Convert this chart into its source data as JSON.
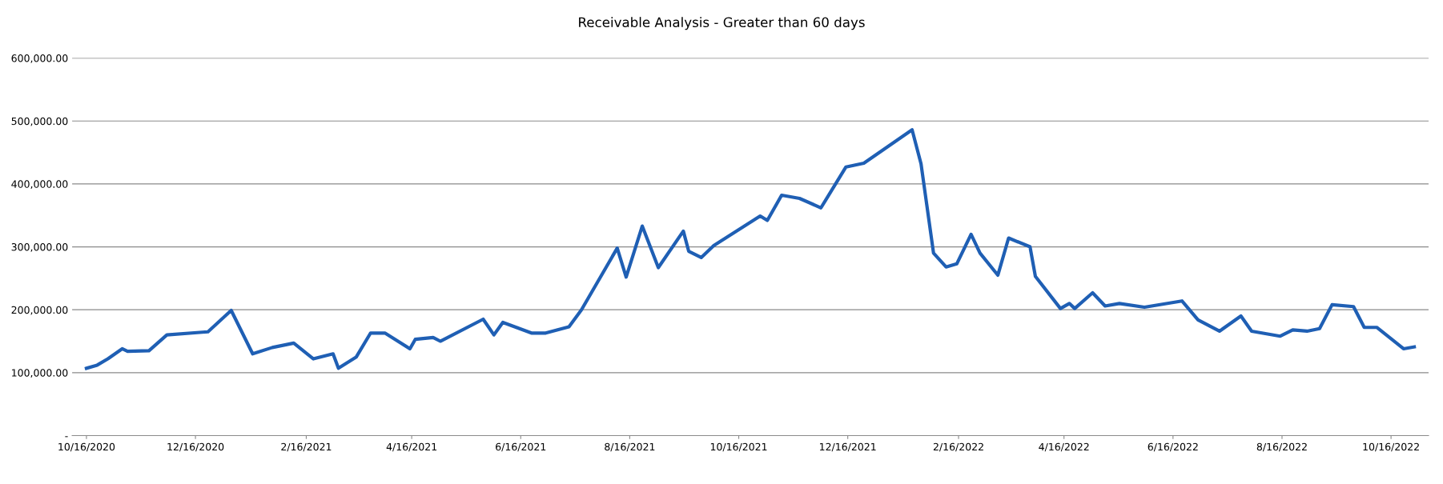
{
  "chart_data": {
    "type": "line",
    "title": "Receivable Analysis - Greater than 60 days",
    "x": [
      "2020-10-16",
      "2020-10-22",
      "2020-10-28",
      "2020-11-05",
      "2020-11-08",
      "2020-11-20",
      "2020-11-30",
      "2020-12-23",
      "2021-01-05",
      "2021-01-17",
      "2021-01-28",
      "2021-02-09",
      "2021-02-20",
      "2021-03-03",
      "2021-03-06",
      "2021-03-16",
      "2021-03-24",
      "2021-04-01",
      "2021-04-15",
      "2021-04-18",
      "2021-04-28",
      "2021-05-02",
      "2021-05-26",
      "2021-06-01",
      "2021-06-06",
      "2021-06-22",
      "2021-06-30",
      "2021-07-13",
      "2021-07-20",
      "2021-08-09",
      "2021-08-14",
      "2021-08-23",
      "2021-09-01",
      "2021-09-15",
      "2021-09-18",
      "2021-09-25",
      "2021-10-02",
      "2021-10-28",
      "2021-11-01",
      "2021-11-09",
      "2021-11-19",
      "2021-12-01",
      "2021-12-15",
      "2021-12-25",
      "2022-01-21",
      "2022-01-26",
      "2022-02-02",
      "2022-02-09",
      "2022-02-15",
      "2022-02-23",
      "2022-02-28",
      "2022-03-10",
      "2022-03-16",
      "2022-03-28",
      "2022-03-31",
      "2022-04-14",
      "2022-04-19",
      "2022-04-22",
      "2022-05-02",
      "2022-05-09",
      "2022-05-17",
      "2022-05-31",
      "2022-06-21",
      "2022-06-30",
      "2022-07-12",
      "2022-07-24",
      "2022-07-30",
      "2022-08-15",
      "2022-08-22",
      "2022-08-30",
      "2022-09-06",
      "2022-09-13",
      "2022-09-25",
      "2022-10-01",
      "2022-10-08",
      "2022-10-23",
      "2022-10-29"
    ],
    "series": [
      {
        "color": "#1f5fb4",
        "values": [
          107000,
          112000,
          122000,
          138000,
          134000,
          135000,
          160000,
          165000,
          199000,
          130000,
          140000,
          147000,
          122000,
          130000,
          107000,
          125000,
          163000,
          163000,
          138000,
          153000,
          156000,
          150000,
          185000,
          160000,
          180000,
          163000,
          163000,
          173000,
          200000,
          298000,
          252000,
          333000,
          267000,
          325000,
          293000,
          283000,
          302000,
          349000,
          342000,
          382000,
          377000,
          362000,
          427000,
          433000,
          486000,
          432000,
          290000,
          268000,
          273000,
          320000,
          290000,
          255000,
          314000,
          300000,
          253000,
          202000,
          210000,
          202000,
          227000,
          206000,
          210000,
          204000,
          214000,
          184000,
          166000,
          190000,
          166000,
          158000,
          168000,
          166000,
          170000,
          208000,
          205000,
          172000,
          172000,
          138000,
          141000
        ]
      }
    ],
    "xlim": [
      "2020-10-08",
      "2022-11-06"
    ],
    "xticks": [
      {
        "value": "2020-10-16",
        "label": "10/16/2020"
      },
      {
        "value": "2020-12-16",
        "label": "12/16/2020"
      },
      {
        "value": "2021-02-16",
        "label": "2/16/2021"
      },
      {
        "value": "2021-04-16",
        "label": "4/16/2021"
      },
      {
        "value": "2021-06-16",
        "label": "6/16/2021"
      },
      {
        "value": "2021-08-16",
        "label": "8/16/2021"
      },
      {
        "value": "2021-10-16",
        "label": "10/16/2021"
      },
      {
        "value": "2021-12-16",
        "label": "12/16/2021"
      },
      {
        "value": "2022-02-16",
        "label": "2/16/2022"
      },
      {
        "value": "2022-04-16",
        "label": "4/16/2022"
      },
      {
        "value": "2022-06-16",
        "label": "6/16/2022"
      },
      {
        "value": "2022-08-16",
        "label": "8/16/2022"
      },
      {
        "value": "2022-10-16",
        "label": "10/16/2022"
      }
    ],
    "ylim": [
      0,
      600000
    ],
    "yticks": [
      {
        "value": 0,
        "label": "-"
      },
      {
        "value": 100000,
        "label": "100,000.00"
      },
      {
        "value": 200000,
        "label": "200,000.00"
      },
      {
        "value": 300000,
        "label": "300,000.00"
      },
      {
        "value": 400000,
        "label": "400,000.00"
      },
      {
        "value": 500000,
        "label": "500,000.00"
      },
      {
        "value": 600000,
        "label": "600,000.00"
      }
    ],
    "grid": "y",
    "marker": "none",
    "line_style": "solid"
  }
}
